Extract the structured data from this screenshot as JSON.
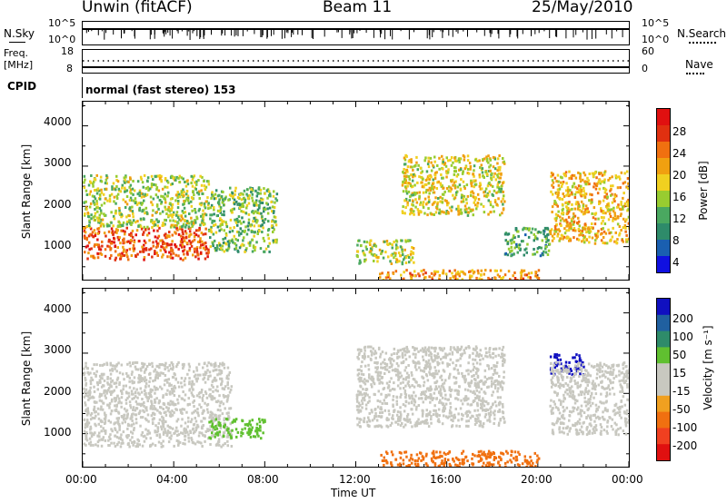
{
  "header": {
    "station": "Unwin (fitACF)",
    "beam": "Beam 11",
    "date": "25/May/2010"
  },
  "top_panels": {
    "nsky_label": "N.Sky",
    "nsky_ticks": [
      "10^5",
      "10^0"
    ],
    "nsearch_label": "N.Search",
    "nsearch_ticks": [
      "10^5",
      "10^0"
    ],
    "freq_label_line1": "Freq.",
    "freq_label_line2": "[MHz]",
    "freq_ticks": [
      "18",
      "8"
    ],
    "nave_label": "Nave",
    "nave_ticks": [
      "60",
      "0"
    ],
    "cpid_label": "CPID",
    "cpid_text": "normal (fast stereo) 153"
  },
  "colors": {
    "power_scale": [
      "#1010e0",
      "#1a5fb0",
      "#2e8b6a",
      "#4aa860",
      "#98cc30",
      "#f0d020",
      "#f0a010",
      "#f07010",
      "#e03010",
      "#e01010"
    ],
    "velocity_scale": [
      "#e01010",
      "#f04020",
      "#f07010",
      "#f0a020",
      "#c8c8c0",
      "#c8c8c0",
      "#60c030",
      "#2e8b6a",
      "#2060a0",
      "#1010c0"
    ],
    "velocity_gray": "#c8c8c0"
  },
  "chart_data": [
    {
      "type": "heatmap",
      "panel": "power",
      "ylabel": "Slant Range [km]",
      "yticks": [
        "4000",
        "3000",
        "2000",
        "1000"
      ],
      "ylim": [
        180,
        4600
      ],
      "xlim_hours": [
        0,
        24
      ],
      "colorbar_label": "Power [dB]",
      "colorbar_ticks": [
        "28",
        "24",
        "20",
        "16",
        "12",
        "8",
        "4"
      ],
      "colorbar_range": [
        0,
        30
      ],
      "echo_regions": [
        {
          "t0": 0.0,
          "t1": 5.5,
          "r0": 700,
          "r1": 1500,
          "value": 24
        },
        {
          "t0": 0.0,
          "t1": 5.5,
          "r0": 1500,
          "r1": 2800,
          "value": 14
        },
        {
          "t0": 5.5,
          "t1": 8.5,
          "r0": 900,
          "r1": 2500,
          "value": 12
        },
        {
          "t0": 12.0,
          "t1": 14.5,
          "r0": 600,
          "r1": 1200,
          "value": 14
        },
        {
          "t0": 14.0,
          "t1": 18.5,
          "r0": 1800,
          "r1": 3300,
          "value": 16
        },
        {
          "t0": 18.5,
          "t1": 20.5,
          "r0": 800,
          "r1": 1500,
          "value": 10
        },
        {
          "t0": 20.5,
          "t1": 24.0,
          "r0": 1100,
          "r1": 2900,
          "value": 18
        },
        {
          "t0": 13.0,
          "t1": 20.0,
          "r0": 200,
          "r1": 450,
          "value": 20
        }
      ]
    },
    {
      "type": "heatmap",
      "panel": "velocity",
      "ylabel": "Slant Range [km]",
      "yticks": [
        "4000",
        "3000",
        "2000",
        "1000"
      ],
      "ylim": [
        180,
        4600
      ],
      "xlim_hours": [
        0,
        24
      ],
      "xlabel": "Time UT",
      "xticks": [
        "00:00",
        "04:00",
        "08:00",
        "12:00",
        "16:00",
        "20:00",
        "00:00"
      ],
      "colorbar_label": "Velocity [m s⁻¹]",
      "colorbar_ticks": [
        "200",
        "100",
        "50",
        "15",
        "-15",
        "-50",
        "-100",
        "-200"
      ],
      "echo_regions": [
        {
          "t0": 0.0,
          "t1": 6.5,
          "r0": 700,
          "r1": 2800,
          "value": 0
        },
        {
          "t0": 5.5,
          "t1": 8.0,
          "r0": 900,
          "r1": 1400,
          "value": 80
        },
        {
          "t0": 12.0,
          "t1": 18.5,
          "r0": 1200,
          "r1": 3200,
          "value": 0
        },
        {
          "t0": 13.0,
          "t1": 20.0,
          "r0": 200,
          "r1": 600,
          "value": -60
        },
        {
          "t0": 20.5,
          "t1": 22.0,
          "r0": 2500,
          "r1": 3000,
          "value": 180
        },
        {
          "t0": 20.5,
          "t1": 24.0,
          "r0": 1000,
          "r1": 2800,
          "value": 0
        }
      ]
    }
  ]
}
